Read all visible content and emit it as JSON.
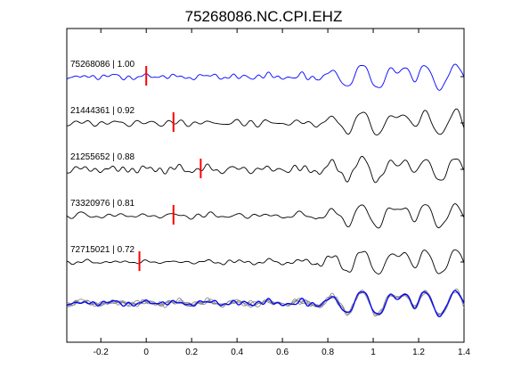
{
  "chart_data": {
    "type": "line",
    "title": "75268086.NC.CPI.EHZ",
    "xlabel": "",
    "ylabel": "",
    "xlim": [
      -0.35,
      1.4
    ],
    "xticks": [
      -0.2,
      0,
      0.2,
      0.4,
      0.6,
      0.8,
      1,
      1.2,
      1.4
    ],
    "xtick_labels": [
      "-0.2",
      "0",
      "0.2",
      "0.4",
      "0.6",
      "0.8",
      "1",
      "1.2",
      "1.4"
    ],
    "grid": false,
    "colors": {
      "reference": "#0000ff",
      "trace": "#000000",
      "overlay": "#808080",
      "pick": "#ff0000"
    },
    "traces": [
      {
        "label": "75268086 | 1.00",
        "pick_time": 0.0,
        "noise": 0.05,
        "seed": 1,
        "reference": true
      },
      {
        "label": "21444361 | 0.92",
        "pick_time": 0.12,
        "noise": 0.12,
        "seed": 2,
        "reference": false
      },
      {
        "label": "21255652 | 0.88",
        "pick_time": 0.24,
        "noise": 0.16,
        "seed": 3,
        "reference": false
      },
      {
        "label": "73320976 | 0.81",
        "pick_time": 0.12,
        "noise": 0.06,
        "seed": 4,
        "reference": false
      },
      {
        "label": "72715021 | 0.72",
        "pick_time": -0.03,
        "noise": 0.03,
        "seed": 5,
        "reference": false
      }
    ],
    "stack": {
      "label": ""
    }
  }
}
